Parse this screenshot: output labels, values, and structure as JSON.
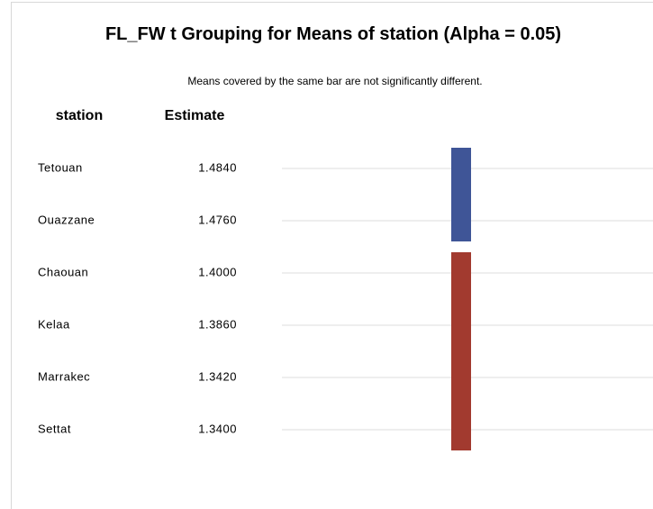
{
  "title": "FL_FW t Grouping for Means of station (Alpha = 0.05)",
  "subtitle": "Means covered by the same bar are not significantly different.",
  "table": {
    "columns": [
      "station",
      "Estimate"
    ],
    "rows": [
      [
        "Tetouan",
        "1.4840"
      ],
      [
        "Ouazzane",
        "1.4760"
      ],
      [
        "Chaouan",
        "1.4000"
      ],
      [
        "Kelaa",
        "1.3860"
      ],
      [
        "Marrakec",
        "1.3420"
      ],
      [
        "Settat",
        "1.3400"
      ]
    ]
  },
  "groups": [
    {
      "color": "#3f5597",
      "rows": [
        0,
        1
      ]
    },
    {
      "color": "#a23a2f",
      "rows": [
        2,
        3,
        4,
        5
      ]
    }
  ]
}
